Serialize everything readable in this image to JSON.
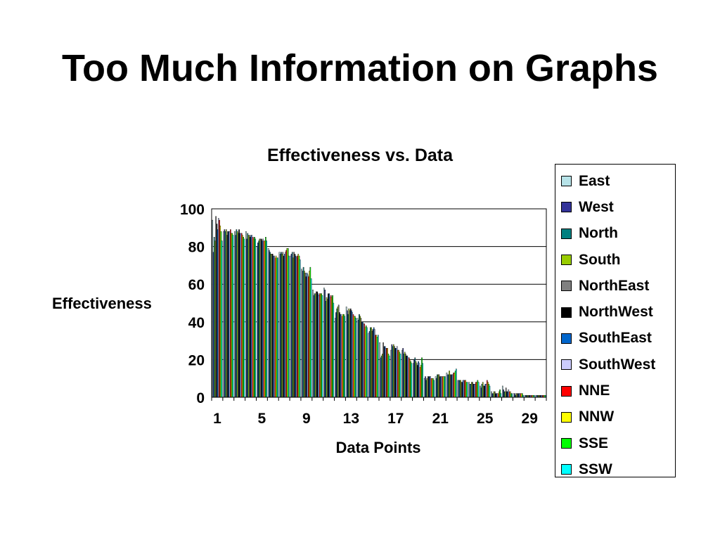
{
  "page": {
    "title": "Too Much Information on Graphs"
  },
  "chart_data": {
    "type": "bar",
    "title": "Effectiveness vs. Data",
    "xlabel": "Data Points",
    "ylabel": "Effectiveness",
    "ylim": [
      0,
      100
    ],
    "yticks": [
      0,
      20,
      40,
      60,
      80,
      100
    ],
    "x_tick_labels": [
      "1",
      "5",
      "9",
      "13",
      "17",
      "21",
      "25",
      "29"
    ],
    "grid": true,
    "legend": "right",
    "categories": [
      "1",
      "2",
      "3",
      "4",
      "5",
      "6",
      "7",
      "8",
      "9",
      "10",
      "11",
      "12",
      "13",
      "14",
      "15",
      "16",
      "17",
      "18",
      "19",
      "20",
      "21",
      "22",
      "23",
      "24",
      "25",
      "26",
      "27",
      "28",
      "29",
      "30"
    ],
    "series": [
      {
        "name": "East",
        "color": "#B7E3E8",
        "values": [
          94,
          88,
          88,
          88,
          80,
          79,
          77,
          75,
          68,
          57,
          58,
          42,
          48,
          42,
          34,
          29,
          25,
          25,
          18,
          10,
          11,
          13,
          9,
          8,
          6,
          3,
          6,
          2,
          1,
          1
        ]
      },
      {
        "name": "West",
        "color": "#333399",
        "values": [
          77,
          89,
          86,
          84,
          82,
          78,
          76,
          76,
          67,
          54,
          57,
          45,
          46,
          41,
          35,
          21,
          28,
          26,
          20,
          11,
          10,
          12,
          9,
          7,
          5,
          2,
          4,
          2,
          1,
          1
        ]
      },
      {
        "name": "North",
        "color": "#008080",
        "values": [
          85,
          88,
          89,
          87,
          83,
          77,
          77,
          77,
          69,
          55,
          51,
          47,
          44,
          44,
          37,
          22,
          27,
          23,
          21,
          9,
          12,
          12,
          9,
          7,
          7,
          2,
          3,
          1,
          1,
          1
        ]
      },
      {
        "name": "South",
        "color": "#99CC00",
        "values": [
          83,
          89,
          88,
          86,
          84,
          76,
          76,
          74,
          67,
          55,
          53,
          48,
          47,
          43,
          37,
          23,
          28,
          24,
          19,
          10,
          12,
          14,
          9,
          8,
          8,
          3,
          3,
          2,
          1,
          1
        ]
      },
      {
        "name": "NorthEast",
        "color": "#808080",
        "values": [
          96,
          86,
          87,
          86,
          84,
          76,
          77,
          77,
          66,
          56,
          52,
          49,
          46,
          42,
          35,
          29,
          27,
          23,
          18,
          11,
          12,
          12,
          8,
          8,
          6,
          3,
          5,
          2,
          1,
          1
        ]
      },
      {
        "name": "NorthWest",
        "color": "#000000",
        "values": [
          92,
          88,
          89,
          85,
          84,
          76,
          75,
          76,
          64,
          56,
          55,
          45,
          47,
          40,
          36,
          27,
          26,
          22,
          17,
          11,
          11,
          12,
          8,
          7,
          6,
          2,
          3,
          2,
          1,
          1
        ]
      },
      {
        "name": "SouthEast",
        "color": "#0066CC",
        "values": [
          89,
          88,
          87,
          86,
          83,
          75,
          76,
          75,
          66,
          55,
          55,
          44,
          46,
          40,
          37,
          27,
          26,
          22,
          19,
          11,
          11,
          12,
          9,
          7,
          7,
          2,
          3,
          2,
          1,
          1
        ]
      },
      {
        "name": "SouthWest",
        "color": "#CCCCFF",
        "values": [
          95,
          88,
          87,
          86,
          84,
          75,
          77,
          74,
          65,
          54,
          53,
          44,
          45,
          39,
          36,
          26,
          27,
          21,
          18,
          11,
          11,
          12,
          9,
          7,
          7,
          2,
          4,
          2,
          1,
          1
        ]
      },
      {
        "name": "NNE",
        "color": "#FF0000",
        "values": [
          94,
          89,
          87,
          85,
          83,
          74,
          78,
          75,
          64,
          55,
          54,
          43,
          44,
          39,
          33,
          26,
          25,
          21,
          16,
          10,
          11,
          13,
          9,
          8,
          9,
          2,
          3,
          2,
          1,
          1
        ]
      },
      {
        "name": "NNW",
        "color": "#FFFF00",
        "values": [
          91,
          87,
          86,
          84,
          83,
          75,
          79,
          76,
          67,
          55,
          53,
          44,
          43,
          37,
          33,
          26,
          25,
          20,
          17,
          10,
          11,
          13,
          9,
          8,
          8,
          3,
          3,
          2,
          1,
          1
        ]
      },
      {
        "name": "SSE",
        "color": "#00FF00",
        "values": [
          88,
          87,
          85,
          85,
          85,
          74,
          79,
          75,
          69,
          55,
          54,
          44,
          43,
          38,
          32,
          23,
          24,
          19,
          21,
          10,
          11,
          14,
          8,
          9,
          7,
          4,
          2,
          2,
          1,
          1
        ]
      },
      {
        "name": "SSW",
        "color": "#00FFFF",
        "values": [
          83,
          86,
          84,
          84,
          83,
          74,
          75,
          73,
          63,
          54,
          50,
          43,
          42,
          37,
          33,
          22,
          23,
          18,
          18,
          9,
          11,
          15,
          8,
          8,
          6,
          2,
          2,
          1,
          1,
          1
        ]
      }
    ]
  }
}
